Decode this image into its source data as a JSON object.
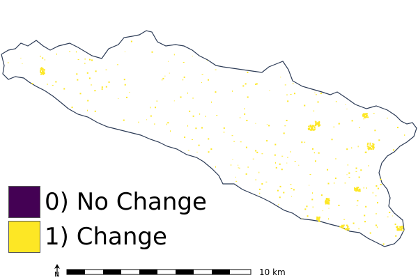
{
  "map": {
    "boundary_stroke": "#2b3a55",
    "fill": "#ffffff"
  },
  "legend": {
    "items": [
      {
        "label": "0) No Change",
        "color": "#440154"
      },
      {
        "label": "1) Change",
        "color": "#fde725"
      }
    ]
  },
  "scalebar": {
    "label": "10 km"
  },
  "north_arrow": {
    "letter": "N"
  }
}
